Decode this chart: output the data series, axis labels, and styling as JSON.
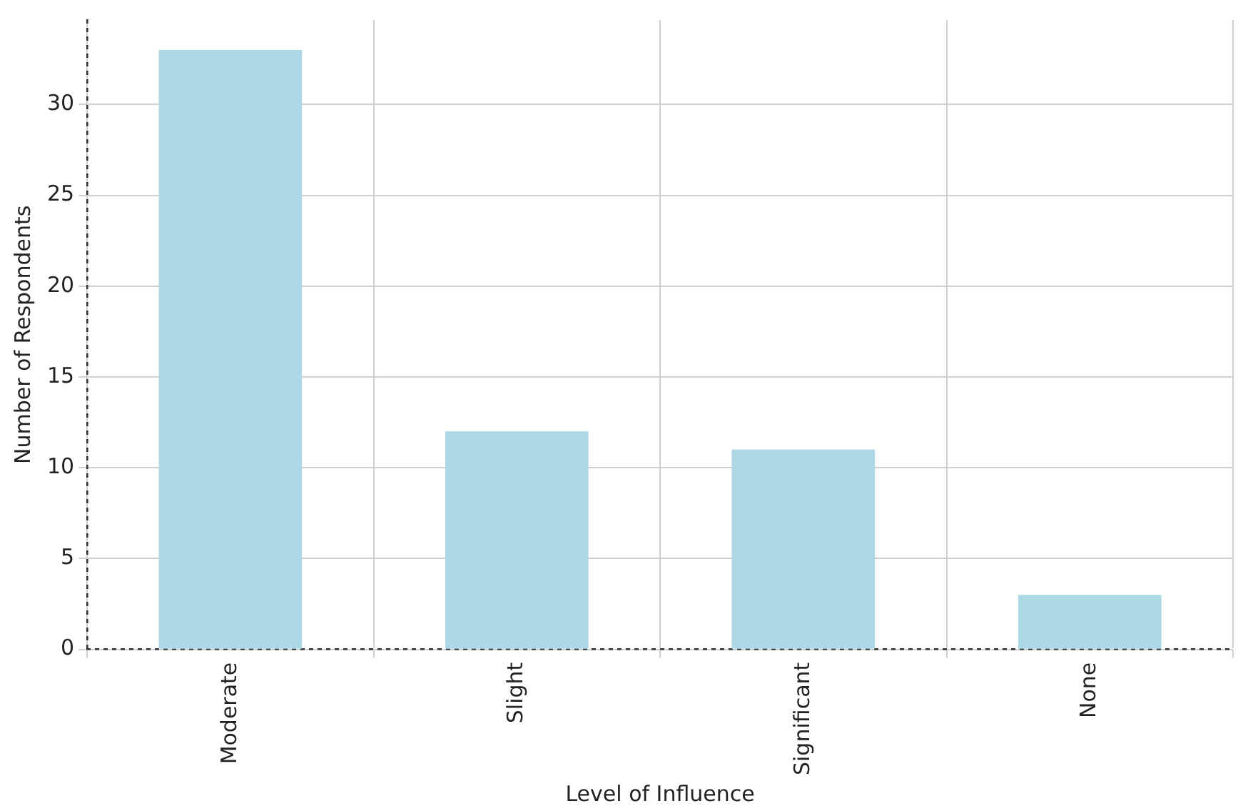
{
  "chart_data": {
    "type": "bar",
    "xlabel": "Level of Influence",
    "ylabel": "Number of Respondents",
    "categories": [
      "Moderate",
      "Slight",
      "Significant",
      "None"
    ],
    "values": [
      33,
      12,
      11,
      3
    ],
    "color": "#add8e6",
    "ylim": [
      0,
      34.65
    ],
    "yticks": [
      0,
      5,
      10,
      15,
      20,
      25,
      30
    ],
    "grid": true,
    "legend": false
  }
}
